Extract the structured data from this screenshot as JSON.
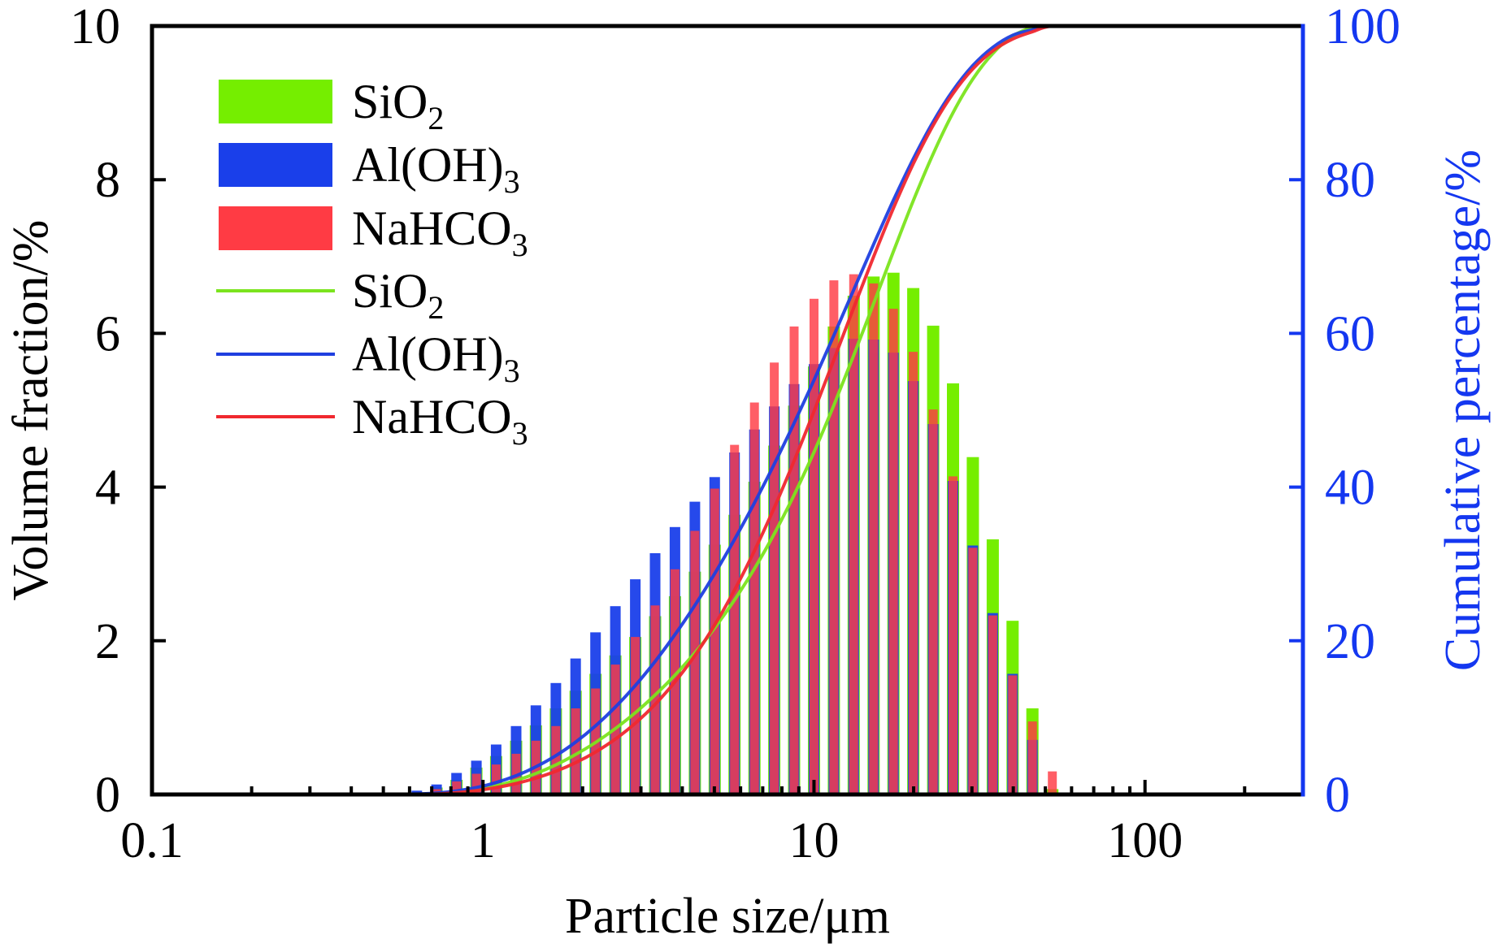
{
  "chart_data": {
    "type": "bar",
    "title": "",
    "xlabel": "Particle size/μm",
    "ylabel": "Volume fraction/%",
    "y2label": "Cumulative percentage/%",
    "xscale": "log",
    "xlim": [
      0.1,
      300
    ],
    "ylim": [
      0,
      10
    ],
    "y2lim": [
      0,
      100
    ],
    "xticks": [
      0.1,
      1,
      10,
      100
    ],
    "xtick_labels": [
      "0.1",
      "1",
      "10",
      "100"
    ],
    "yticks": [
      0,
      2,
      4,
      6,
      8,
      10
    ],
    "ytick_labels": [
      "0",
      "2",
      "4",
      "6",
      "8",
      "10"
    ],
    "y2ticks": [
      0,
      20,
      40,
      60,
      80,
      100
    ],
    "y2tick_labels": [
      "0",
      "20",
      "40",
      "60",
      "80",
      "100"
    ],
    "grid": false,
    "legend_position": "top-left",
    "x": [
      0.631,
      0.724,
      0.832,
      0.955,
      1.096,
      1.259,
      1.445,
      1.66,
      1.905,
      2.188,
      2.512,
      2.884,
      3.311,
      3.802,
      4.365,
      5.012,
      5.754,
      6.607,
      7.586,
      8.71,
      10.0,
      11.48,
      13.18,
      15.14,
      17.38,
      19.95,
      22.91,
      26.3,
      30.2,
      34.67,
      39.81,
      45.71,
      52.48
    ],
    "series": [
      {
        "name": "SiO2",
        "kind": "bar",
        "axis": "left",
        "color": "#75EE00",
        "values": [
          0,
          0.09,
          0.19,
          0.35,
          0.5,
          0.7,
          0.9,
          1.12,
          1.35,
          1.57,
          1.81,
          2.05,
          2.32,
          2.58,
          2.9,
          3.25,
          3.64,
          4.07,
          4.54,
          5.06,
          5.57,
          6.09,
          6.49,
          6.74,
          6.79,
          6.59,
          6.1,
          5.35,
          4.39,
          3.32,
          2.26,
          1.12,
          0.07
        ]
      },
      {
        "name": "Al(OH)3",
        "kind": "bar",
        "axis": "left",
        "color": "#1A3FEA",
        "values": [
          0.05,
          0.13,
          0.28,
          0.44,
          0.65,
          0.89,
          1.16,
          1.45,
          1.77,
          2.11,
          2.45,
          2.8,
          3.14,
          3.48,
          3.81,
          4.13,
          4.45,
          4.75,
          5.05,
          5.34,
          5.6,
          5.81,
          5.93,
          5.92,
          5.75,
          5.38,
          4.82,
          4.08,
          3.24,
          2.36,
          1.57,
          0.71,
          0
        ]
      },
      {
        "name": "NaHCO3",
        "kind": "bar",
        "axis": "left",
        "color": "#FF3B44",
        "values": [
          0,
          0.07,
          0.17,
          0.27,
          0.39,
          0.53,
          0.7,
          0.89,
          1.12,
          1.38,
          1.69,
          2.05,
          2.46,
          2.93,
          3.43,
          3.98,
          4.55,
          5.1,
          5.62,
          6.09,
          6.45,
          6.69,
          6.77,
          6.65,
          6.32,
          5.76,
          5.01,
          4.14,
          3.21,
          2.33,
          1.55,
          0.95,
          0.3
        ]
      },
      {
        "name": "SiO2",
        "kind": "line",
        "axis": "right",
        "color": "#7BE41E",
        "values": [
          0,
          0.09,
          0.28,
          0.63,
          1.13,
          1.83,
          2.73,
          3.85,
          5.2,
          6.77,
          8.58,
          10.63,
          12.95,
          15.53,
          18.43,
          21.68,
          25.32,
          29.39,
          33.93,
          38.99,
          44.56,
          50.65,
          57.14,
          63.88,
          70.67,
          77.26,
          83.36,
          88.71,
          93.1,
          96.42,
          98.68,
          99.8,
          100
        ]
      },
      {
        "name": "Al(OH)3",
        "kind": "line",
        "axis": "right",
        "color": "#1F3FE0",
        "values": [
          0.05,
          0.18,
          0.46,
          0.9,
          1.55,
          2.44,
          3.6,
          5.05,
          6.82,
          8.93,
          11.38,
          14.18,
          17.32,
          20.8,
          24.61,
          28.74,
          33.19,
          37.94,
          42.99,
          48.33,
          53.93,
          59.74,
          65.67,
          71.59,
          77.34,
          82.72,
          87.54,
          91.62,
          94.86,
          97.22,
          98.79,
          99.5,
          100
        ]
      },
      {
        "name": "NaHCO3",
        "kind": "line",
        "axis": "right",
        "color": "#F0282F",
        "values": [
          0,
          0.07,
          0.24,
          0.51,
          0.9,
          1.43,
          2.13,
          3.02,
          4.14,
          5.52,
          7.21,
          9.26,
          11.72,
          14.65,
          18.08,
          22.06,
          26.61,
          31.71,
          37.33,
          43.42,
          49.87,
          56.56,
          63.33,
          69.98,
          76.3,
          82.06,
          87.07,
          91.21,
          94.42,
          96.75,
          98.3,
          99.25,
          100
        ]
      }
    ],
    "legend": [
      {
        "label": "SiO",
        "sub": "2",
        "kind": "bar",
        "color": "#75EE00"
      },
      {
        "label": "Al(OH)",
        "sub": "3",
        "kind": "bar",
        "color": "#1A3FEA"
      },
      {
        "label": "NaHCO",
        "sub": "3",
        "kind": "bar",
        "color": "#FF3B44"
      },
      {
        "label": "SiO",
        "sub": "2",
        "kind": "line",
        "color": "#7BE41E"
      },
      {
        "label": "Al(OH)",
        "sub": "3",
        "kind": "line",
        "color": "#1F3FE0"
      },
      {
        "label": "NaHCO",
        "sub": "3",
        "kind": "line",
        "color": "#F0282F"
      }
    ],
    "axis_colors": {
      "left": "#000000",
      "right": "#1437F0"
    }
  }
}
